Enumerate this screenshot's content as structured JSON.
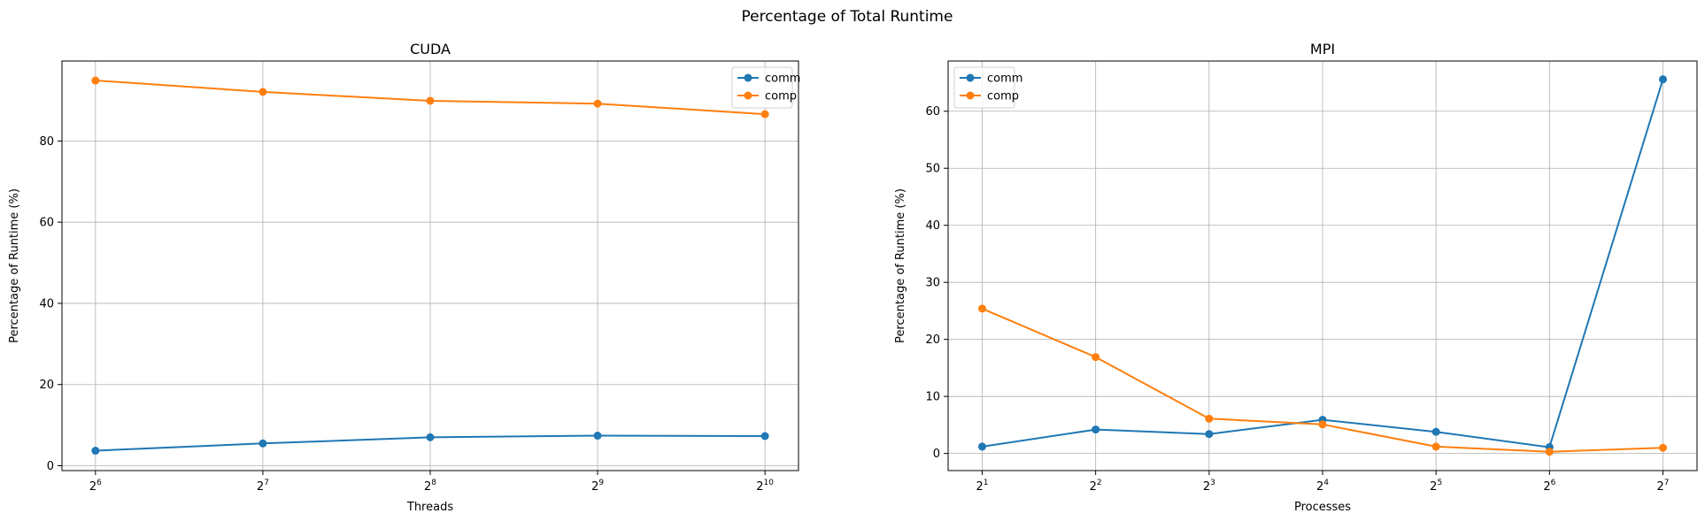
{
  "figure": {
    "title": "Percentage of Total Runtime"
  },
  "chart_data": [
    {
      "type": "line",
      "title": "CUDA",
      "xlabel": "Threads",
      "ylabel": "Percentage of Runtime (%)",
      "x_scale": "log2",
      "x": [
        64,
        128,
        256,
        512,
        1024
      ],
      "x_tick_labels": [
        {
          "base": "2",
          "exp": "6"
        },
        {
          "base": "2",
          "exp": "7"
        },
        {
          "base": "2",
          "exp": "8"
        },
        {
          "base": "2",
          "exp": "9"
        },
        {
          "base": "2",
          "exp": "10"
        }
      ],
      "ylim": [
        -1.2,
        99.7
      ],
      "y_ticks": [
        0,
        20,
        40,
        60,
        80
      ],
      "grid": true,
      "legend_position": "upper right",
      "series": [
        {
          "name": "comm",
          "color": "#1f77b4",
          "marker": "circle",
          "values": [
            3.7,
            5.5,
            7.0,
            7.4,
            7.3
          ]
        },
        {
          "name": "comp",
          "color": "#ff7f0e",
          "marker": "circle",
          "values": [
            94.9,
            92.1,
            89.9,
            89.2,
            86.6
          ]
        }
      ]
    },
    {
      "type": "line",
      "title": "MPI",
      "xlabel": "Processes",
      "ylabel": "Percentage of Runtime (%)",
      "x_scale": "log2",
      "x": [
        2,
        4,
        8,
        16,
        32,
        64,
        128
      ],
      "x_tick_labels": [
        {
          "base": "2",
          "exp": "1"
        },
        {
          "base": "2",
          "exp": "2"
        },
        {
          "base": "2",
          "exp": "3"
        },
        {
          "base": "2",
          "exp": "4"
        },
        {
          "base": "2",
          "exp": "5"
        },
        {
          "base": "2",
          "exp": "6"
        },
        {
          "base": "2",
          "exp": "7"
        }
      ],
      "ylim": [
        -3.0,
        68.8
      ],
      "y_ticks": [
        0,
        10,
        20,
        30,
        40,
        50,
        60
      ],
      "grid": true,
      "legend_position": "upper left",
      "series": [
        {
          "name": "comm",
          "color": "#1f77b4",
          "marker": "circle",
          "values": [
            1.2,
            4.2,
            3.4,
            5.9,
            3.8,
            1.1,
            65.6
          ]
        },
        {
          "name": "comp",
          "color": "#ff7f0e",
          "marker": "circle",
          "values": [
            25.4,
            16.9,
            6.1,
            5.1,
            1.2,
            0.3,
            1.0
          ]
        }
      ]
    }
  ]
}
